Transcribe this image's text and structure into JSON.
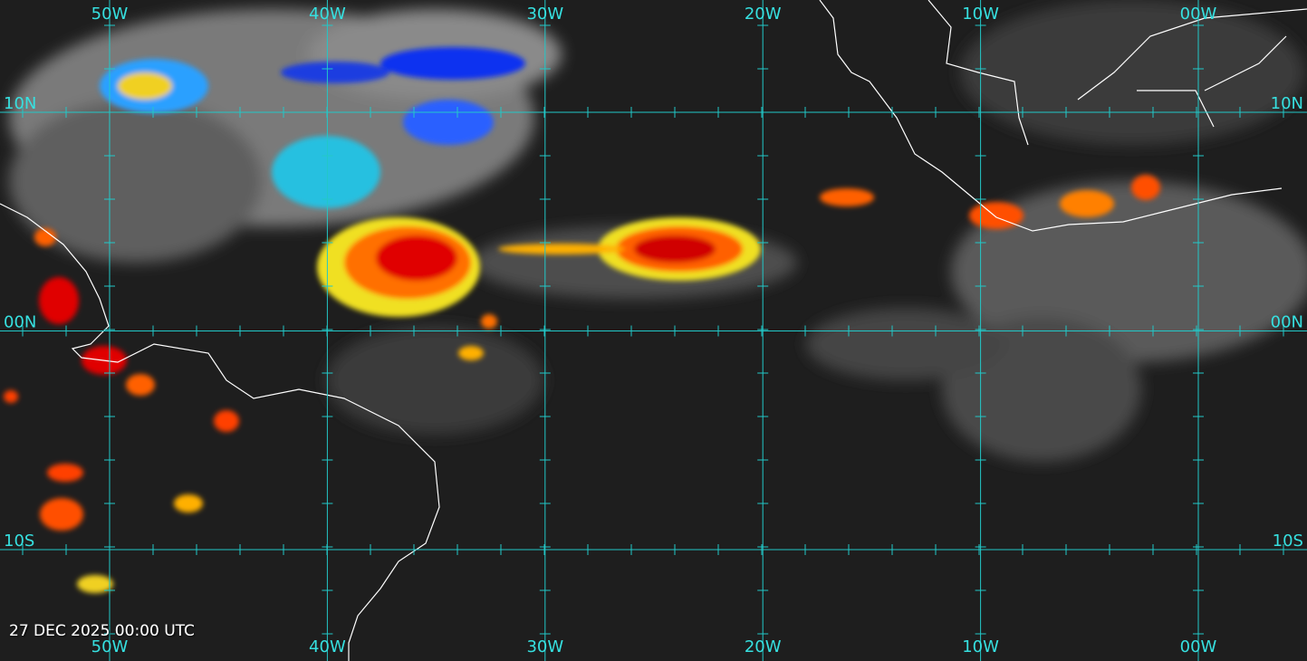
{
  "longitude_labels": [
    "50W",
    "40W",
    "30W",
    "20W",
    "10W",
    "00W"
  ],
  "latitude_labels": [
    "10N",
    "00N",
    "10S"
  ],
  "timestamp": "27 DEC 2025 00:00 UTC"
}
